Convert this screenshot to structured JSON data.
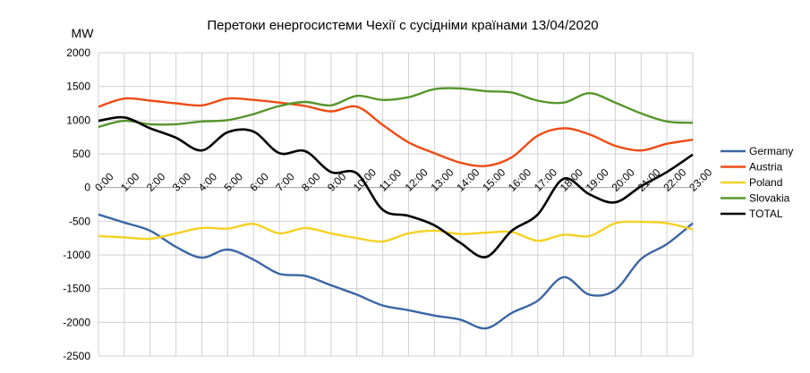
{
  "chart_data": {
    "type": "line",
    "title": "Перетоки енергосистеми Чехії с сусідніми країнами 13/04/2020",
    "ylabel": "MW",
    "xlabel": "",
    "ylim": [
      -2500,
      2000
    ],
    "yticks": [
      2000,
      1500,
      1000,
      500,
      0,
      -500,
      -1000,
      -1500,
      -2000,
      -2500
    ],
    "grid": true,
    "legend_position": "right",
    "categories": [
      "0:00",
      "1:00",
      "2:00",
      "3:00",
      "4:00",
      "5:00",
      "6:00",
      "7:00",
      "8:00",
      "9:00",
      "10:00",
      "11:00",
      "12:00",
      "13:00",
      "14:00",
      "15:00",
      "16:00",
      "17:00",
      "18:00",
      "19:00",
      "20:00",
      "21:00",
      "22:00",
      "23:00"
    ],
    "series": [
      {
        "name": "Germany",
        "color": "#3a66a4",
        "values": [
          -400,
          -520,
          -640,
          -880,
          -1040,
          -920,
          -1070,
          -1280,
          -1310,
          -1450,
          -1590,
          -1750,
          -1820,
          -1900,
          -1960,
          -2090,
          -1860,
          -1680,
          -1330,
          -1590,
          -1520,
          -1060,
          -840,
          -530
        ]
      },
      {
        "name": "Austria",
        "color": "#ee4c14",
        "values": [
          1200,
          1320,
          1290,
          1250,
          1220,
          1320,
          1300,
          1260,
          1210,
          1130,
          1200,
          930,
          670,
          510,
          370,
          320,
          450,
          770,
          880,
          790,
          620,
          550,
          650,
          710
        ]
      },
      {
        "name": "Poland",
        "color": "#f5d122",
        "values": [
          -720,
          -740,
          -760,
          -680,
          -600,
          -610,
          -540,
          -680,
          -600,
          -680,
          -750,
          -800,
          -680,
          -640,
          -690,
          -670,
          -660,
          -790,
          -700,
          -720,
          -530,
          -510,
          -530,
          -620
        ]
      },
      {
        "name": "Slovakia",
        "color": "#56952b",
        "values": [
          900,
          990,
          940,
          940,
          980,
          1000,
          1090,
          1210,
          1270,
          1220,
          1360,
          1300,
          1340,
          1460,
          1470,
          1430,
          1410,
          1290,
          1260,
          1400,
          1260,
          1100,
          980,
          960
        ]
      },
      {
        "name": "TOTAL",
        "color": "#000000",
        "values": [
          990,
          1040,
          880,
          740,
          550,
          820,
          830,
          510,
          540,
          230,
          210,
          -330,
          -420,
          -560,
          -820,
          -1030,
          -640,
          -400,
          130,
          -100,
          -220,
          20,
          230,
          490
        ]
      }
    ]
  }
}
